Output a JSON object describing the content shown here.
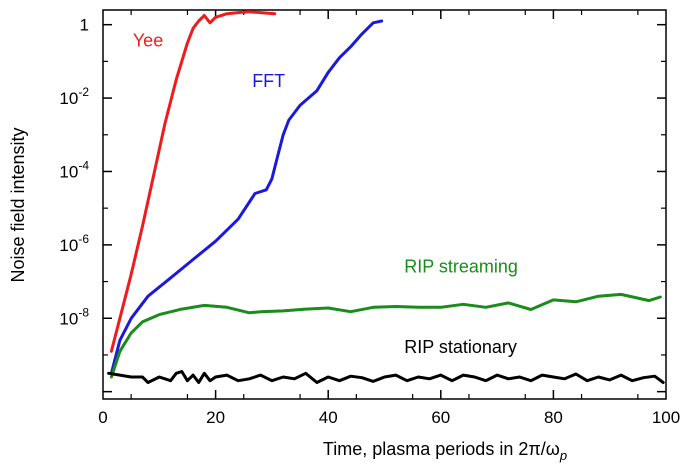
{
  "chart_data": {
    "type": "line",
    "title": "",
    "xlabel": "Time, plasma periods in 2π/ω",
    "xlabel_subscript": "p",
    "ylabel": "Noise field intensity",
    "xlim": [
      0,
      100
    ],
    "ylim_log10": [
      -10.2,
      0.4
    ],
    "yscale": "log",
    "x_ticks": [
      "0",
      "20",
      "40",
      "60",
      "80",
      "100"
    ],
    "y_ticks": [
      {
        "base": "1",
        "exp": ""
      },
      {
        "base": "10",
        "exp": "-2"
      },
      {
        "base": "10",
        "exp": "-4"
      },
      {
        "base": "10",
        "exp": "-6"
      },
      {
        "base": "10",
        "exp": "-8"
      }
    ],
    "series": [
      {
        "name": "Yee",
        "color": "#ee1c1c",
        "x": [
          1.5,
          3,
          5,
          7,
          9,
          11,
          13,
          15,
          16,
          17,
          18,
          19,
          20,
          22,
          24,
          26,
          28,
          30.5
        ],
        "log10_y": [
          -8.9,
          -8.0,
          -6.8,
          -5.5,
          -4.1,
          -2.7,
          -1.5,
          -0.5,
          -0.1,
          0.1,
          0.25,
          0.05,
          0.2,
          0.3,
          0.33,
          0.35,
          0.33,
          0.3
        ]
      },
      {
        "name": "FFT",
        "color": "#1a1adc",
        "x": [
          1.5,
          3,
          5,
          8,
          12,
          16,
          20,
          24,
          27,
          29,
          30,
          31,
          32,
          33,
          35,
          38,
          40,
          42,
          44,
          46,
          48,
          49.5
        ],
        "log10_y": [
          -9.5,
          -8.6,
          -8.0,
          -7.4,
          -6.9,
          -6.4,
          -5.9,
          -5.3,
          -4.6,
          -4.5,
          -4.2,
          -3.6,
          -3.0,
          -2.6,
          -2.2,
          -1.8,
          -1.3,
          -0.9,
          -0.6,
          -0.25,
          0.05,
          0.1
        ]
      },
      {
        "name": "RIP streaming",
        "color": "#1a8c1a",
        "x": [
          1.5,
          3,
          5,
          7,
          10,
          14,
          18,
          22,
          26,
          28,
          32,
          36,
          40,
          44,
          48,
          52,
          56,
          60,
          64,
          68,
          72,
          76,
          80,
          84,
          88,
          92,
          95,
          97,
          99
        ],
        "log10_y": [
          -9.6,
          -8.9,
          -8.4,
          -8.1,
          -7.9,
          -7.75,
          -7.65,
          -7.7,
          -7.85,
          -7.82,
          -7.8,
          -7.75,
          -7.72,
          -7.82,
          -7.7,
          -7.68,
          -7.7,
          -7.7,
          -7.62,
          -7.7,
          -7.58,
          -7.76,
          -7.5,
          -7.55,
          -7.4,
          -7.35,
          -7.45,
          -7.52,
          -7.42
        ]
      },
      {
        "name": "RIP stationary",
        "color": "#000000",
        "x": [
          1,
          3,
          5,
          7,
          8,
          10,
          12,
          13,
          14,
          15,
          16,
          17,
          18,
          19,
          20,
          22,
          24,
          26,
          28,
          30,
          32,
          34,
          36,
          38,
          40,
          42,
          44,
          46,
          48,
          50,
          52,
          54,
          56,
          58,
          60,
          62,
          64,
          66,
          68,
          70,
          72,
          74,
          76,
          78,
          80,
          82,
          84,
          86,
          88,
          90,
          92,
          94,
          96,
          98,
          99.5
        ],
        "log10_y": [
          -9.5,
          -9.55,
          -9.6,
          -9.6,
          -9.75,
          -9.6,
          -9.7,
          -9.5,
          -9.45,
          -9.7,
          -9.55,
          -9.75,
          -9.5,
          -9.7,
          -9.6,
          -9.55,
          -9.7,
          -9.65,
          -9.55,
          -9.7,
          -9.6,
          -9.65,
          -9.5,
          -9.75,
          -9.6,
          -9.7,
          -9.58,
          -9.62,
          -9.72,
          -9.6,
          -9.55,
          -9.7,
          -9.6,
          -9.65,
          -9.55,
          -9.7,
          -9.55,
          -9.6,
          -9.7,
          -9.55,
          -9.65,
          -9.6,
          -9.7,
          -9.55,
          -9.6,
          -9.65,
          -9.52,
          -9.7,
          -9.6,
          -9.68,
          -9.55,
          -9.7,
          -9.62,
          -9.58,
          -9.75
        ]
      }
    ]
  }
}
